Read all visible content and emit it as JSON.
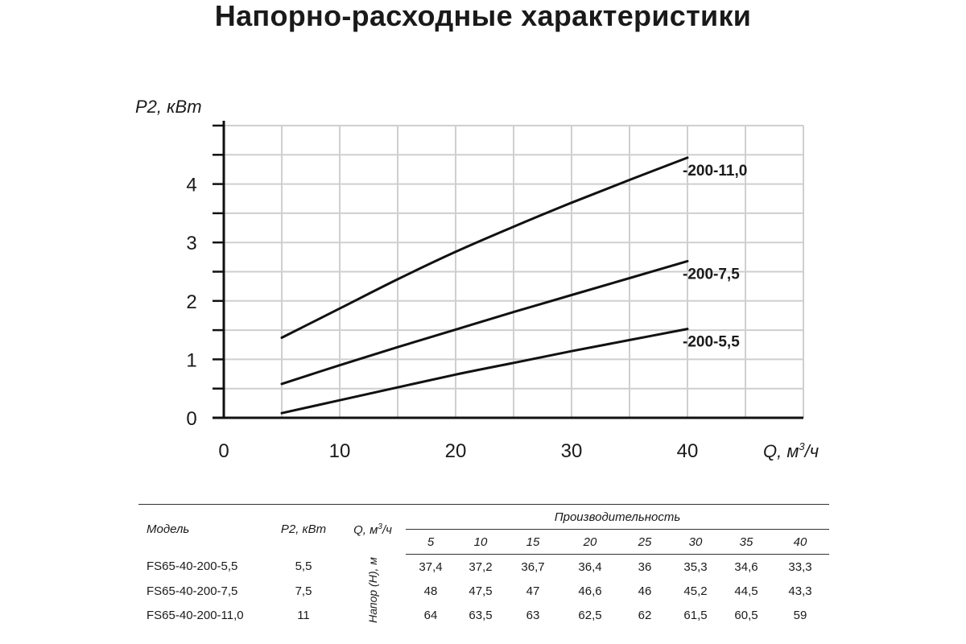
{
  "title": "Напорно-расходные характеристики",
  "chart_data": {
    "type": "line",
    "ylabel": "P2, кВт",
    "xlabel_prefix": "Q, м",
    "xlabel_sup": "3",
    "xlabel_suffix": "/ч",
    "xlim": [
      0,
      50
    ],
    "ylim": [
      0,
      5
    ],
    "x_ticks": [
      0,
      10,
      20,
      30,
      40
    ],
    "y_ticks": [
      0,
      1,
      2,
      3,
      4
    ],
    "grid": true,
    "series": [
      {
        "name": "-200-11,0",
        "x": [
          5,
          10,
          15,
          20,
          25,
          30,
          35,
          40
        ],
        "y": [
          1.37,
          1.87,
          2.37,
          2.84,
          3.27,
          3.68,
          4.07,
          4.45
        ]
      },
      {
        "name": "-200-7,5",
        "x": [
          5,
          10,
          15,
          20,
          25,
          30,
          35,
          40
        ],
        "y": [
          0.58,
          0.9,
          1.21,
          1.51,
          1.81,
          2.1,
          2.39,
          2.68
        ]
      },
      {
        "name": "-200-5,5",
        "x": [
          5,
          10,
          15,
          20,
          25,
          30,
          35,
          40
        ],
        "y": [
          0.08,
          0.3,
          0.52,
          0.74,
          0.94,
          1.14,
          1.33,
          1.52
        ]
      }
    ]
  },
  "table": {
    "h_model": "Модель",
    "h_p2": "P2, кВт",
    "h_q_prefix": "Q, м",
    "h_q_sup": "3",
    "h_q_suffix": "/ч",
    "h_perf": "Производительность",
    "h_head": "Напор (H), м",
    "q_values": [
      "5",
      "10",
      "15",
      "20",
      "25",
      "30",
      "35",
      "40"
    ],
    "rows": [
      {
        "model": "FS65-40-200-5,5",
        "p2": "5,5",
        "heads": [
          "37,4",
          "37,2",
          "36,7",
          "36,4",
          "36",
          "35,3",
          "34,6",
          "33,3"
        ]
      },
      {
        "model": "FS65-40-200-7,5",
        "p2": "7,5",
        "heads": [
          "48",
          "47,5",
          "47",
          "46,6",
          "46",
          "45,2",
          "44,5",
          "43,3"
        ]
      },
      {
        "model": "FS65-40-200-11,0",
        "p2": "11",
        "heads": [
          "64",
          "63,5",
          "63",
          "62,5",
          "62",
          "61,5",
          "60,5",
          "59"
        ]
      }
    ]
  }
}
